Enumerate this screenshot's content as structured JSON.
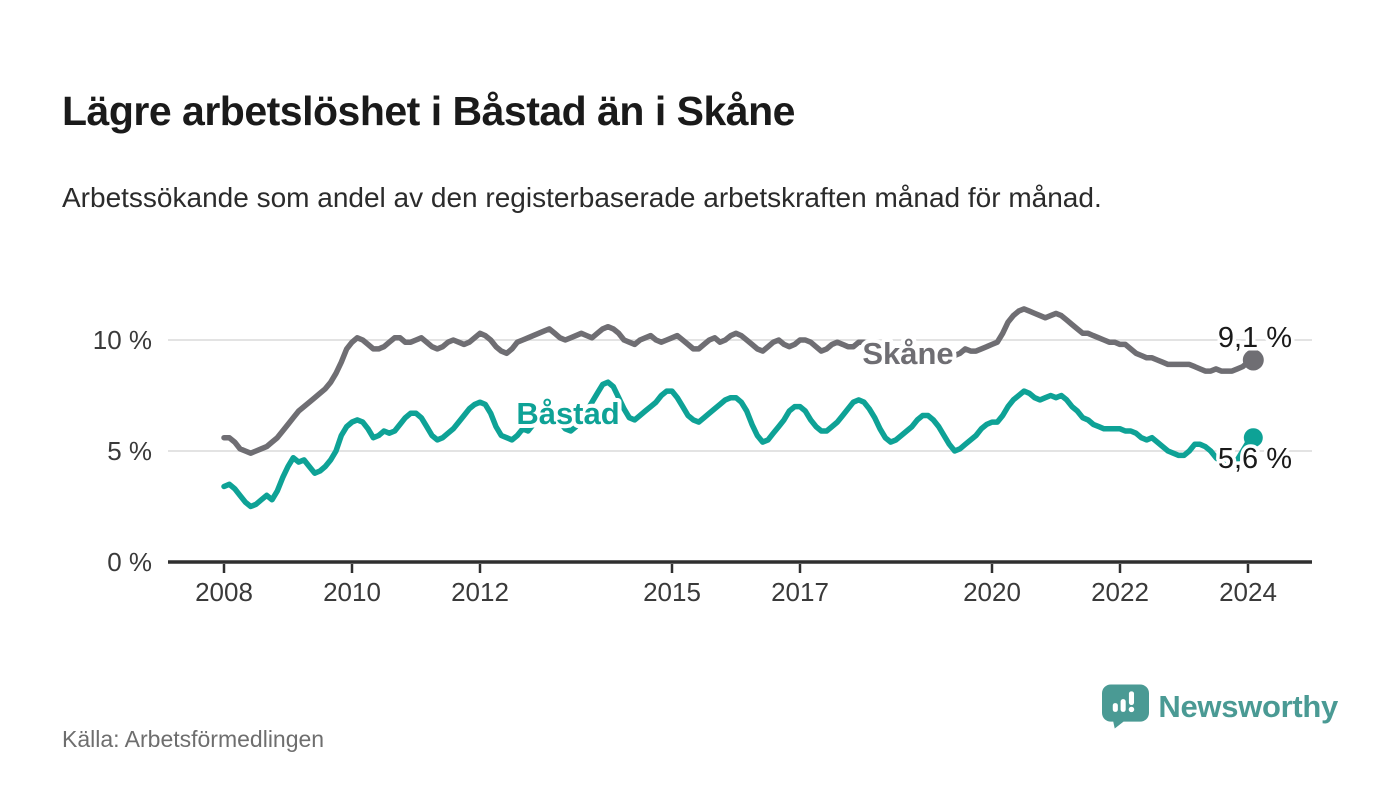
{
  "header": {
    "title": "Lägre arbetslöshet i Båstad än i Skåne",
    "subtitle": "Arbetssökande som andel av den registerbaserade arbetskraften månad för månad."
  },
  "footer": {
    "source": "Källa: Arbetsförmedlingen",
    "brand": "Newsworthy"
  },
  "colors": {
    "skane_line": "#6f6e73",
    "bastad_line": "#0ea296",
    "grid": "#dadada",
    "axis": "#2f2f2f",
    "tick_text": "#3a3a3a",
    "value_text": "#1a1a1a",
    "brand_teal": "#4a9a94"
  },
  "chart_data": {
    "type": "line",
    "x_start": "2008-01",
    "x_end": "2024-02",
    "points_per_year": 12,
    "ylim": [
      0,
      12
    ],
    "grid": "horizontal gridlines at 5 % and 10 %",
    "legend_position": "inline labels next to lines, end values at right",
    "yticks": [
      {
        "value": 0,
        "label": "0 %"
      },
      {
        "value": 5,
        "label": "5 %"
      },
      {
        "value": 10,
        "label": "10 %"
      }
    ],
    "xticks": [
      {
        "year": 2008,
        "label": "2008"
      },
      {
        "year": 2010,
        "label": "2010"
      },
      {
        "year": 2012,
        "label": "2012"
      },
      {
        "year": 2015,
        "label": "2015"
      },
      {
        "year": 2017,
        "label": "2017"
      },
      {
        "year": 2020,
        "label": "2020"
      },
      {
        "year": 2022,
        "label": "2022"
      },
      {
        "year": 2024,
        "label": "2024"
      }
    ],
    "series": [
      {
        "name": "Skåne",
        "color": "#6f6e73",
        "end_label": "9,1 %",
        "end_value": 9.1,
        "values": [
          5.6,
          5.6,
          5.4,
          5.1,
          5.0,
          4.9,
          5.0,
          5.1,
          5.2,
          5.4,
          5.6,
          5.9,
          6.2,
          6.5,
          6.8,
          7.0,
          7.2,
          7.4,
          7.6,
          7.8,
          8.1,
          8.5,
          9.0,
          9.6,
          9.9,
          10.1,
          10.0,
          9.8,
          9.6,
          9.6,
          9.7,
          9.9,
          10.1,
          10.1,
          9.9,
          9.9,
          10.0,
          10.1,
          9.9,
          9.7,
          9.6,
          9.7,
          9.9,
          10.0,
          9.9,
          9.8,
          9.9,
          10.1,
          10.3,
          10.2,
          10.0,
          9.7,
          9.5,
          9.4,
          9.6,
          9.9,
          10.0,
          10.1,
          10.2,
          10.3,
          10.4,
          10.5,
          10.3,
          10.1,
          10.0,
          10.1,
          10.2,
          10.3,
          10.2,
          10.1,
          10.3,
          10.5,
          10.6,
          10.5,
          10.3,
          10.0,
          9.9,
          9.8,
          10.0,
          10.1,
          10.2,
          10.0,
          9.9,
          10.0,
          10.1,
          10.2,
          10.0,
          9.8,
          9.6,
          9.6,
          9.8,
          10.0,
          10.1,
          9.9,
          10.0,
          10.2,
          10.3,
          10.2,
          10.0,
          9.8,
          9.6,
          9.5,
          9.7,
          9.9,
          10.0,
          9.8,
          9.7,
          9.8,
          10.0,
          10.0,
          9.9,
          9.7,
          9.5,
          9.6,
          9.8,
          9.9,
          9.8,
          9.7,
          9.7,
          9.9,
          9.9,
          9.8,
          9.6,
          9.5,
          9.4,
          9.5,
          9.6,
          9.7,
          9.6,
          9.5,
          9.5,
          9.6,
          9.7,
          9.6,
          9.5,
          9.3,
          9.2,
          9.3,
          9.4,
          9.6,
          9.5,
          9.5,
          9.6,
          9.7,
          9.8,
          9.9,
          10.3,
          10.8,
          11.1,
          11.3,
          11.4,
          11.3,
          11.2,
          11.1,
          11.0,
          11.1,
          11.2,
          11.1,
          10.9,
          10.7,
          10.5,
          10.3,
          10.3,
          10.2,
          10.1,
          10.0,
          9.9,
          9.9,
          9.8,
          9.8,
          9.6,
          9.4,
          9.3,
          9.2,
          9.2,
          9.1,
          9.0,
          8.9,
          8.9,
          8.9,
          8.9,
          8.9,
          8.8,
          8.7,
          8.6,
          8.6,
          8.7,
          8.6,
          8.6,
          8.6,
          8.7,
          8.8,
          9.0,
          9.1
        ]
      },
      {
        "name": "Båstad",
        "color": "#0ea296",
        "end_label": "5,6 %",
        "end_value": 5.6,
        "values": [
          3.4,
          3.5,
          3.3,
          3.0,
          2.7,
          2.5,
          2.6,
          2.8,
          3.0,
          2.8,
          3.2,
          3.8,
          4.3,
          4.7,
          4.5,
          4.6,
          4.3,
          4.0,
          4.1,
          4.3,
          4.6,
          5.0,
          5.7,
          6.1,
          6.3,
          6.4,
          6.3,
          6.0,
          5.6,
          5.7,
          5.9,
          5.8,
          5.9,
          6.2,
          6.5,
          6.7,
          6.7,
          6.5,
          6.1,
          5.7,
          5.5,
          5.6,
          5.8,
          6.0,
          6.3,
          6.6,
          6.9,
          7.1,
          7.2,
          7.1,
          6.7,
          6.1,
          5.7,
          5.6,
          5.5,
          5.7,
          6.0,
          5.9,
          6.2,
          6.5,
          6.8,
          6.9,
          6.6,
          6.3,
          6.0,
          5.9,
          6.1,
          6.4,
          6.8,
          7.2,
          7.6,
          8.0,
          8.1,
          7.9,
          7.4,
          6.9,
          6.5,
          6.4,
          6.6,
          6.8,
          7.0,
          7.2,
          7.5,
          7.7,
          7.7,
          7.4,
          7.0,
          6.6,
          6.4,
          6.3,
          6.5,
          6.7,
          6.9,
          7.1,
          7.3,
          7.4,
          7.4,
          7.2,
          6.8,
          6.2,
          5.7,
          5.4,
          5.5,
          5.8,
          6.1,
          6.4,
          6.8,
          7.0,
          7.0,
          6.8,
          6.4,
          6.1,
          5.9,
          5.9,
          6.1,
          6.3,
          6.6,
          6.9,
          7.2,
          7.3,
          7.2,
          6.9,
          6.5,
          6.0,
          5.6,
          5.4,
          5.5,
          5.7,
          5.9,
          6.1,
          6.4,
          6.6,
          6.6,
          6.4,
          6.1,
          5.7,
          5.3,
          5.0,
          5.1,
          5.3,
          5.5,
          5.7,
          6.0,
          6.2,
          6.3,
          6.3,
          6.6,
          7.0,
          7.3,
          7.5,
          7.7,
          7.6,
          7.4,
          7.3,
          7.4,
          7.5,
          7.4,
          7.5,
          7.3,
          7.0,
          6.8,
          6.5,
          6.4,
          6.2,
          6.1,
          6.0,
          6.0,
          6.0,
          6.0,
          5.9,
          5.9,
          5.8,
          5.6,
          5.5,
          5.6,
          5.4,
          5.2,
          5.0,
          4.9,
          4.8,
          4.8,
          5.0,
          5.3,
          5.3,
          5.2,
          5.0,
          4.7,
          4.5,
          4.3,
          4.4,
          4.6,
          5.0,
          5.4,
          5.6
        ]
      }
    ]
  }
}
